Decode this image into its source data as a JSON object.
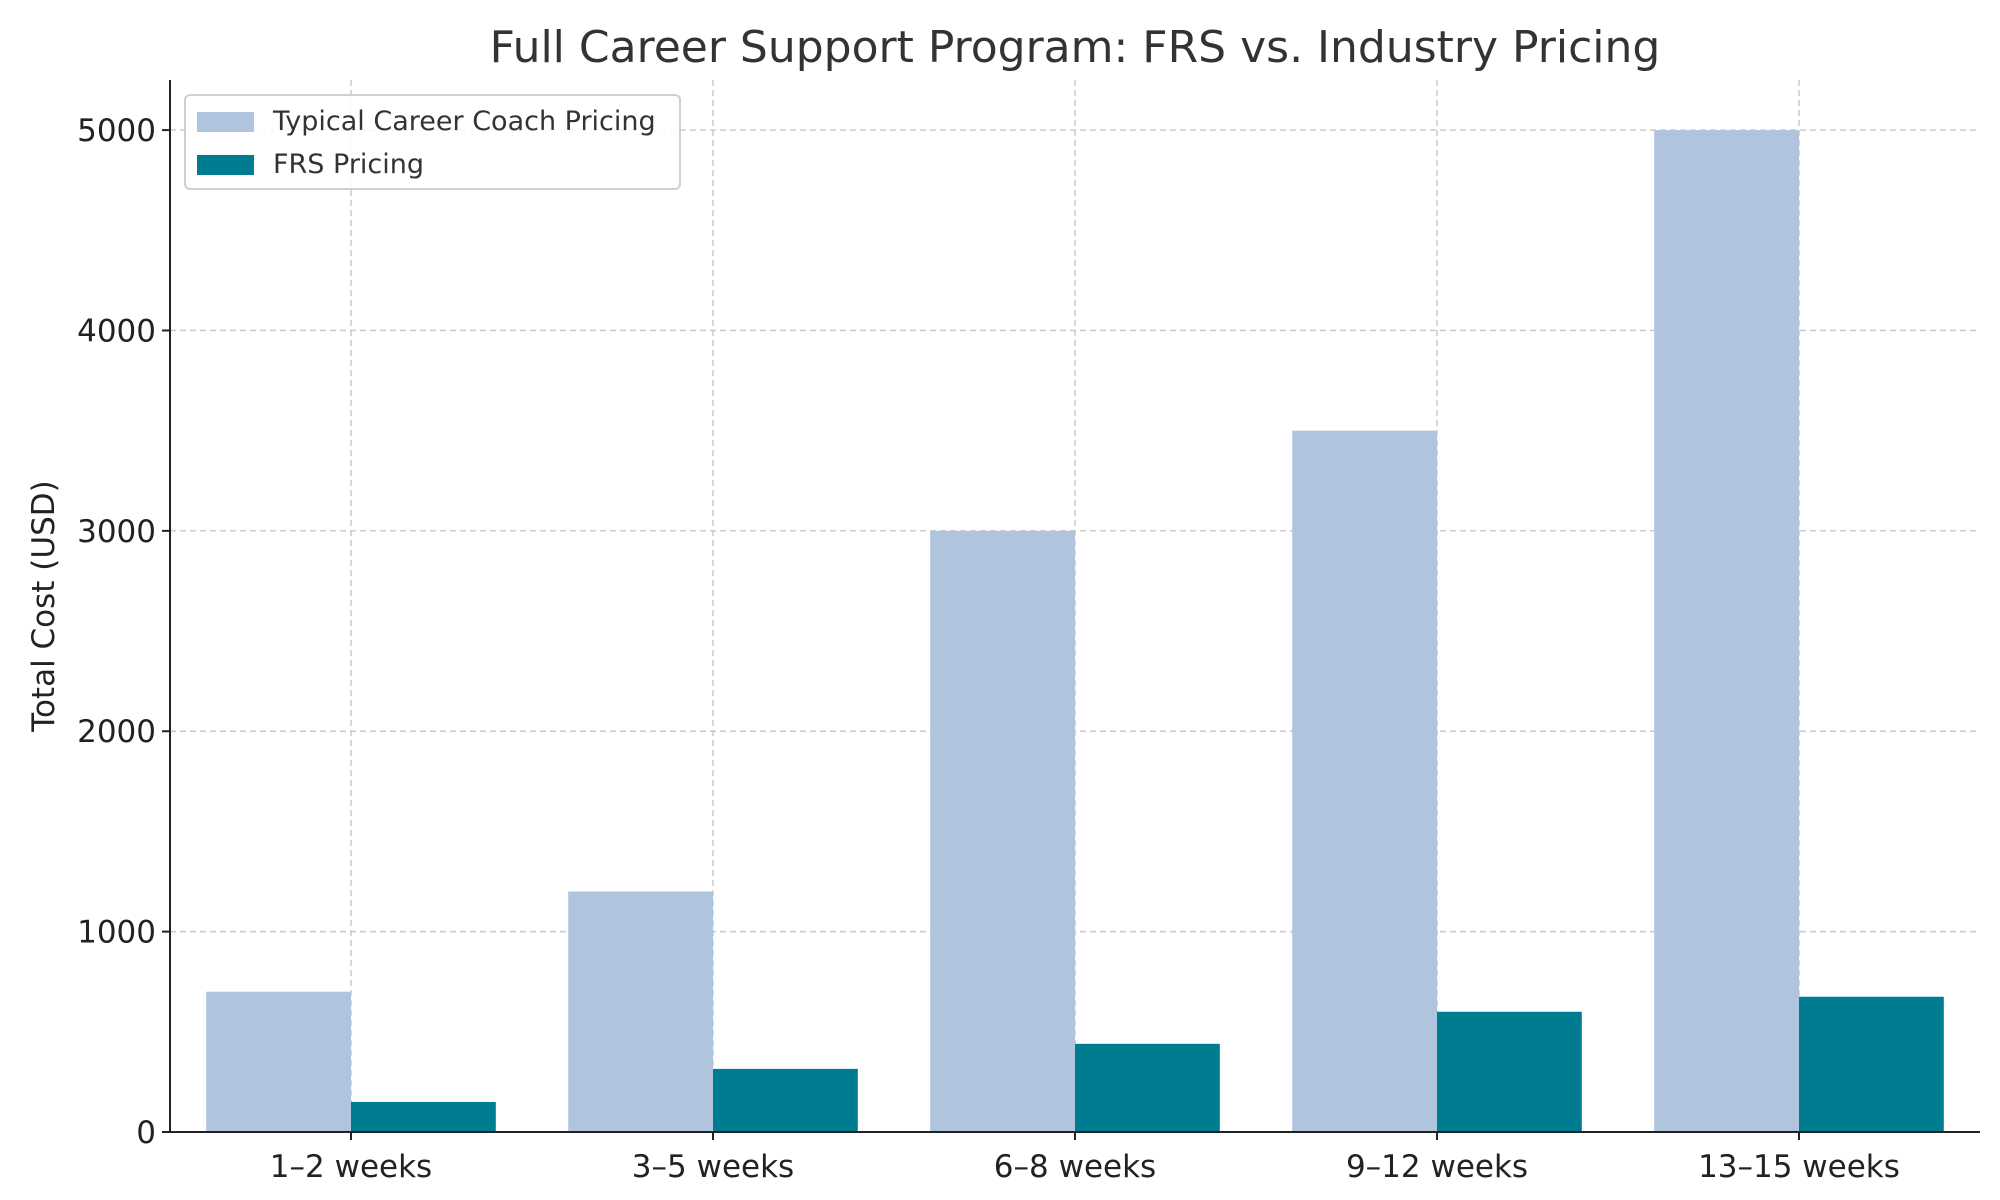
{
  "chart_data": {
    "type": "bar",
    "title": "Full Career Support Program: FRS vs. Industry Pricing",
    "xlabel": "",
    "ylabel": "Total Cost (USD)",
    "categories": [
      "1–2 weeks",
      "3–5 weeks",
      "6–8 weeks",
      "9–12 weeks",
      "13–15 weeks"
    ],
    "series": [
      {
        "name": "Typical Career Coach Pricing",
        "color": "#b0c4de",
        "values": [
          700,
          1200,
          3000,
          3500,
          5000
        ]
      },
      {
        "name": "FRS Pricing",
        "color": "#007c91",
        "values": [
          150,
          315,
          440,
          600,
          675
        ]
      }
    ],
    "ylim": [
      0,
      5250
    ],
    "yticks": [
      0,
      1000,
      2000,
      3000,
      4000,
      5000
    ],
    "grid": true,
    "legend_position": "top-left"
  }
}
